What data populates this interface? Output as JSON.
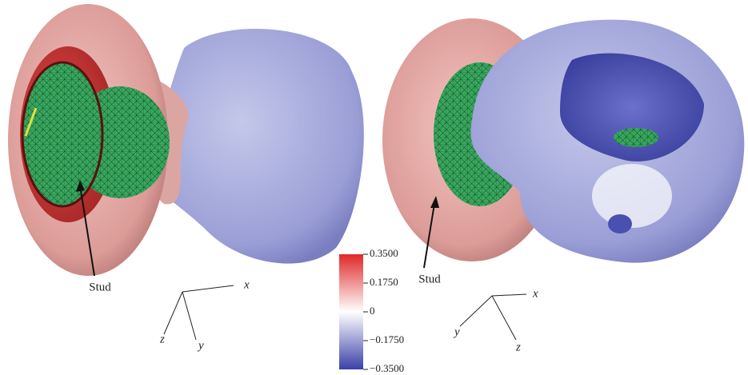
{
  "left_panel": {
    "stud_label": "Stud",
    "axes": {
      "x": "x",
      "y": "y",
      "z": "z"
    }
  },
  "right_panel": {
    "stud_label": "Stud",
    "axes": {
      "x": "x",
      "y": "y",
      "z": "z"
    }
  },
  "colorbar": {
    "lim": [
      -0.35,
      0.35
    ],
    "ticks": [
      {
        "value": 0.35,
        "label": "0.3500"
      },
      {
        "value": 0.175,
        "label": "0.1750"
      },
      0,
      {
        "value": -0.175,
        "label": "−0.1750"
      },
      {
        "value": -0.35,
        "label": "−0.3500"
      }
    ]
  }
}
